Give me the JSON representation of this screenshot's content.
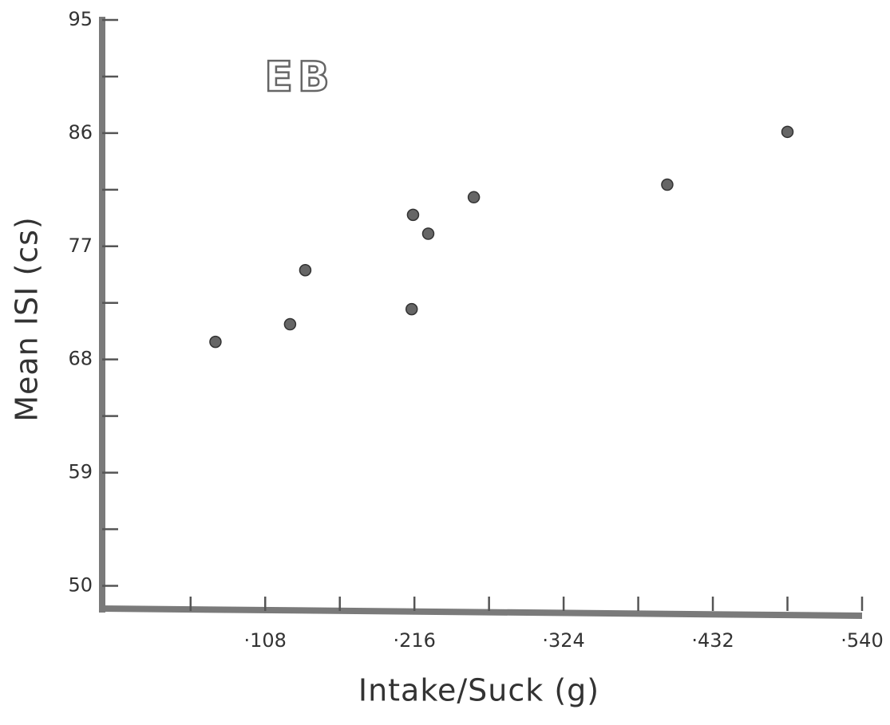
{
  "chart_data": {
    "type": "scatter",
    "annotation": "EB",
    "x_label": "Intake/Suck (g)",
    "y_label": "Mean ISI (cs)",
    "color": "#666666",
    "xlim": [
      -0.01,
      0.54
    ],
    "ylim": [
      48,
      95
    ],
    "xticks": [
      {
        "value": 0.108,
        "label": "·108"
      },
      {
        "value": 0.216,
        "label": "·216"
      },
      {
        "value": 0.324,
        "label": "·324"
      },
      {
        "value": 0.432,
        "label": "·432"
      },
      {
        "value": 0.54,
        "label": "·540"
      }
    ],
    "xminorticks": [
      0.054,
      0.162,
      0.27,
      0.378,
      0.486
    ],
    "yticks": [
      50,
      59,
      68,
      77,
      86,
      95
    ],
    "yminorticks": [
      54.5,
      63.5,
      72.5,
      81.5,
      90.5
    ],
    "x": [
      0.072,
      0.126,
      0.137,
      0.214,
      0.215,
      0.226,
      0.259,
      0.399,
      0.486
    ],
    "values": [
      69.4,
      70.8,
      75.1,
      72.0,
      79.5,
      78.0,
      80.9,
      81.9,
      86.1
    ]
  }
}
